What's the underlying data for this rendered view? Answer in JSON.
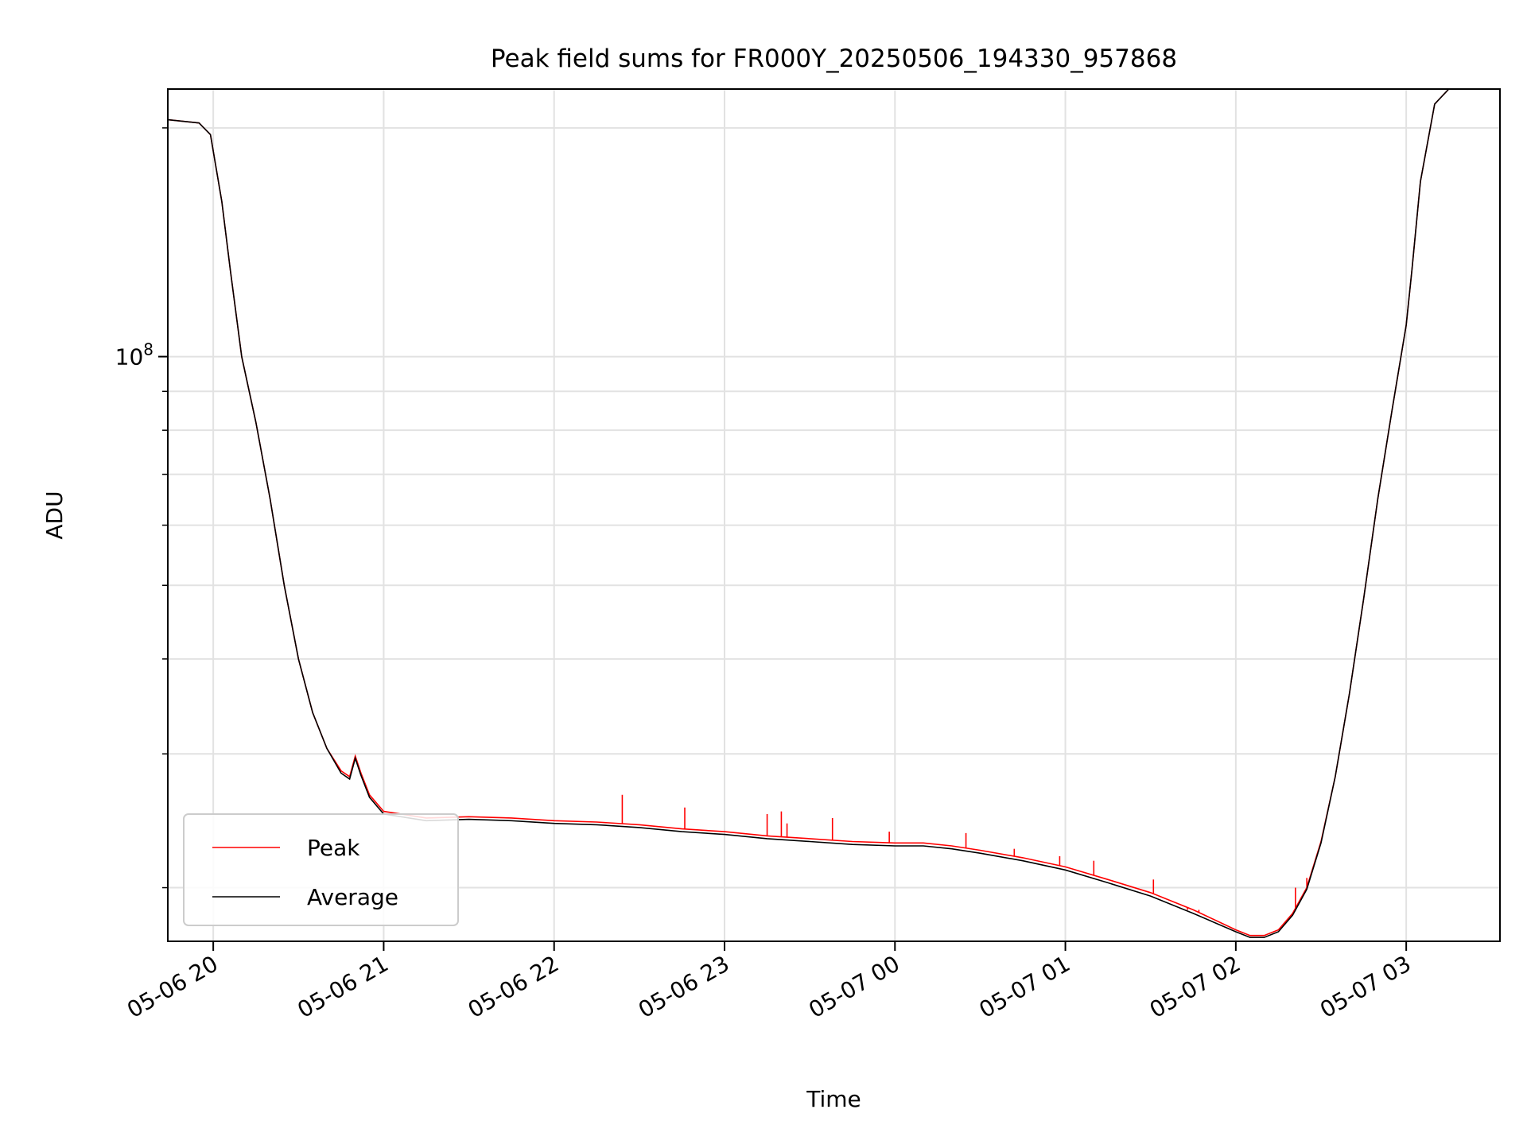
{
  "chart_data": {
    "type": "line",
    "title": "Peak field sums for FR000Y_20250506_194330_957868",
    "xlabel": "Time",
    "ylabel": "ADU",
    "yscale": "log",
    "grid": true,
    "grid_minor": true,
    "legend_position": "lower-left",
    "x_ticks": [
      {
        "value": "2025-05-06T20:00",
        "label": "05-06 20"
      },
      {
        "value": "2025-05-06T21:00",
        "label": "05-06 21"
      },
      {
        "value": "2025-05-06T22:00",
        "label": "05-06 22"
      },
      {
        "value": "2025-05-06T23:00",
        "label": "05-06 23"
      },
      {
        "value": "2025-05-07T00:00",
        "label": "05-07 00"
      },
      {
        "value": "2025-05-07T01:00",
        "label": "05-07 01"
      },
      {
        "value": "2025-05-07T02:00",
        "label": "05-07 02"
      },
      {
        "value": "2025-05-07T03:00",
        "label": "05-07 03"
      }
    ],
    "y_ticks": [
      {
        "value": 100000000,
        "base": "10",
        "exponent": "8"
      }
    ],
    "xlim": [
      "2025-05-06T19:44",
      "2025-05-07T03:33"
    ],
    "ylim": [
      17000000,
      225000000
    ],
    "series": [
      {
        "name": "Peak",
        "color": "#ff0000",
        "points": [
          [
            "2025-05-06T19:44",
            205000000
          ],
          [
            "2025-05-06T19:55",
            203000000
          ],
          [
            "2025-05-06T19:59",
            196000000
          ],
          [
            "2025-05-06T20:03",
            160000000
          ],
          [
            "2025-05-06T20:06",
            130000000
          ],
          [
            "2025-05-06T20:10",
            100000000
          ],
          [
            "2025-05-06T20:15",
            82000000
          ],
          [
            "2025-05-06T20:20",
            65000000
          ],
          [
            "2025-05-06T20:25",
            50000000
          ],
          [
            "2025-05-06T20:30",
            40000000
          ],
          [
            "2025-05-06T20:35",
            34000000
          ],
          [
            "2025-05-06T20:40",
            30500000
          ],
          [
            "2025-05-06T20:45",
            28500000
          ],
          [
            "2025-05-06T20:48",
            28000000
          ],
          [
            "2025-05-06T20:50",
            29800000
          ],
          [
            "2025-05-06T20:52",
            28300000
          ],
          [
            "2025-05-06T20:55",
            26500000
          ],
          [
            "2025-05-06T21:00",
            25200000
          ],
          [
            "2025-05-06T21:15",
            24700000
          ],
          [
            "2025-05-06T21:30",
            24800000
          ],
          [
            "2025-05-06T21:45",
            24700000
          ],
          [
            "2025-05-06T22:00",
            24500000
          ],
          [
            "2025-05-06T22:15",
            24400000
          ],
          [
            "2025-05-06T22:30",
            24200000
          ],
          [
            "2025-05-06T22:45",
            23900000
          ],
          [
            "2025-05-06T23:00",
            23700000
          ],
          [
            "2025-05-06T23:15",
            23400000
          ],
          [
            "2025-05-06T23:30",
            23200000
          ],
          [
            "2025-05-06T23:45",
            23000000
          ],
          [
            "2025-05-07T00:00",
            22900000
          ],
          [
            "2025-05-07T00:10",
            22900000
          ],
          [
            "2025-05-07T00:20",
            22700000
          ],
          [
            "2025-05-07T00:30",
            22400000
          ],
          [
            "2025-05-07T00:45",
            21900000
          ],
          [
            "2025-05-07T01:00",
            21300000
          ],
          [
            "2025-05-07T01:15",
            20500000
          ],
          [
            "2025-05-07T01:30",
            19700000
          ],
          [
            "2025-05-07T01:45",
            18700000
          ],
          [
            "2025-05-07T02:00",
            17600000
          ],
          [
            "2025-05-07T02:05",
            17300000
          ],
          [
            "2025-05-07T02:10",
            17300000
          ],
          [
            "2025-05-07T02:15",
            17600000
          ],
          [
            "2025-05-07T02:20",
            18500000
          ],
          [
            "2025-05-07T02:25",
            20000000
          ],
          [
            "2025-05-07T02:30",
            23000000
          ],
          [
            "2025-05-07T02:35",
            28000000
          ],
          [
            "2025-05-07T02:40",
            36000000
          ],
          [
            "2025-05-07T02:45",
            48000000
          ],
          [
            "2025-05-07T02:50",
            65000000
          ],
          [
            "2025-05-07T02:55",
            85000000
          ],
          [
            "2025-05-07T03:00",
            110000000
          ],
          [
            "2025-05-07T03:02",
            130000000
          ],
          [
            "2025-05-07T03:05",
            170000000
          ],
          [
            "2025-05-07T03:10",
            215000000
          ],
          [
            "2025-05-07T03:15",
            225000000
          ]
        ],
        "spikes": [
          [
            "2025-05-06T22:24",
            26500000
          ],
          [
            "2025-05-06T22:46",
            25500000
          ],
          [
            "2025-05-06T23:15",
            25000000
          ],
          [
            "2025-05-06T23:20",
            25200000
          ],
          [
            "2025-05-06T23:22",
            24300000
          ],
          [
            "2025-05-06T23:38",
            24700000
          ],
          [
            "2025-05-06T23:58",
            23700000
          ],
          [
            "2025-05-07T00:25",
            23600000
          ],
          [
            "2025-05-07T00:42",
            22500000
          ],
          [
            "2025-05-07T00:58",
            22000000
          ],
          [
            "2025-05-07T01:10",
            21700000
          ],
          [
            "2025-05-07T01:31",
            20500000
          ],
          [
            "2025-05-07T01:43",
            18700000
          ],
          [
            "2025-05-07T01:47",
            18700000
          ],
          [
            "2025-05-07T02:21",
            20000000
          ],
          [
            "2025-05-07T02:25",
            20600000
          ]
        ]
      },
      {
        "name": "Average",
        "color": "#000000",
        "points": [
          [
            "2025-05-06T19:44",
            205000000
          ],
          [
            "2025-05-06T19:55",
            203000000
          ],
          [
            "2025-05-06T19:59",
            196000000
          ],
          [
            "2025-05-06T20:03",
            160000000
          ],
          [
            "2025-05-06T20:06",
            130000000
          ],
          [
            "2025-05-06T20:10",
            100000000
          ],
          [
            "2025-05-06T20:15",
            82000000
          ],
          [
            "2025-05-06T20:20",
            65000000
          ],
          [
            "2025-05-06T20:25",
            50000000
          ],
          [
            "2025-05-06T20:30",
            40000000
          ],
          [
            "2025-05-06T20:35",
            34000000
          ],
          [
            "2025-05-06T20:40",
            30500000
          ],
          [
            "2025-05-06T20:45",
            28300000
          ],
          [
            "2025-05-06T20:48",
            27800000
          ],
          [
            "2025-05-06T20:50",
            29600000
          ],
          [
            "2025-05-06T20:52",
            28100000
          ],
          [
            "2025-05-06T20:55",
            26300000
          ],
          [
            "2025-05-06T21:00",
            25000000
          ],
          [
            "2025-05-06T21:15",
            24500000
          ],
          [
            "2025-05-06T21:30",
            24600000
          ],
          [
            "2025-05-06T21:45",
            24500000
          ],
          [
            "2025-05-06T22:00",
            24300000
          ],
          [
            "2025-05-06T22:15",
            24200000
          ],
          [
            "2025-05-06T22:30",
            24000000
          ],
          [
            "2025-05-06T22:45",
            23700000
          ],
          [
            "2025-05-06T23:00",
            23500000
          ],
          [
            "2025-05-06T23:15",
            23200000
          ],
          [
            "2025-05-06T23:30",
            23000000
          ],
          [
            "2025-05-06T23:45",
            22800000
          ],
          [
            "2025-05-07T00:00",
            22700000
          ],
          [
            "2025-05-07T00:10",
            22700000
          ],
          [
            "2025-05-07T00:20",
            22500000
          ],
          [
            "2025-05-07T00:30",
            22200000
          ],
          [
            "2025-05-07T00:45",
            21700000
          ],
          [
            "2025-05-07T01:00",
            21100000
          ],
          [
            "2025-05-07T01:15",
            20300000
          ],
          [
            "2025-05-07T01:30",
            19500000
          ],
          [
            "2025-05-07T01:45",
            18500000
          ],
          [
            "2025-05-07T02:00",
            17500000
          ],
          [
            "2025-05-07T02:05",
            17200000
          ],
          [
            "2025-05-07T02:10",
            17200000
          ],
          [
            "2025-05-07T02:15",
            17500000
          ],
          [
            "2025-05-07T02:20",
            18400000
          ],
          [
            "2025-05-07T02:25",
            19900000
          ],
          [
            "2025-05-07T02:30",
            22900000
          ],
          [
            "2025-05-07T02:35",
            28000000
          ],
          [
            "2025-05-07T02:40",
            36000000
          ],
          [
            "2025-05-07T02:45",
            48000000
          ],
          [
            "2025-05-07T02:50",
            65000000
          ],
          [
            "2025-05-07T02:55",
            85000000
          ],
          [
            "2025-05-07T03:00",
            110000000
          ],
          [
            "2025-05-07T03:02",
            130000000
          ],
          [
            "2025-05-07T03:05",
            170000000
          ],
          [
            "2025-05-07T03:10",
            215000000
          ],
          [
            "2025-05-07T03:15",
            225000000
          ]
        ]
      }
    ],
    "legend": [
      {
        "label": "Peak",
        "color": "#ff0000"
      },
      {
        "label": "Average",
        "color": "#000000"
      }
    ]
  }
}
